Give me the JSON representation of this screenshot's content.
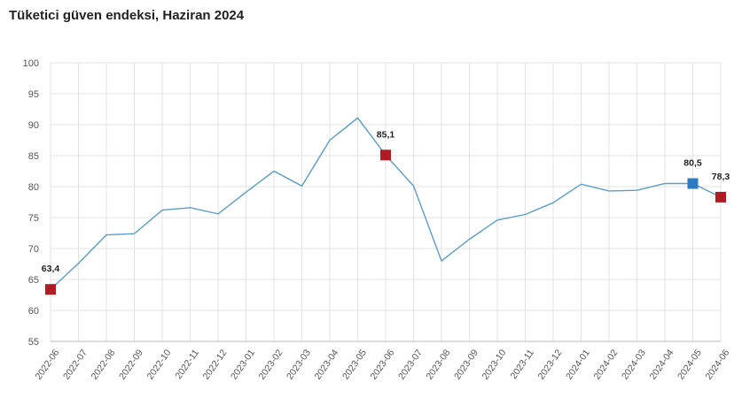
{
  "chart_data": {
    "type": "line",
    "title": "Tüketici güven endeksi, Haziran 2024",
    "xlabel": "",
    "ylabel": "",
    "ylim": [
      55,
      100
    ],
    "yticks": [
      55,
      60,
      65,
      70,
      75,
      80,
      85,
      90,
      95,
      100
    ],
    "grid": true,
    "categories": [
      "2022-06",
      "2022-07",
      "2022-08",
      "2022-09",
      "2022-10",
      "2022-11",
      "2022-12",
      "2023-01",
      "2023-02",
      "2023-03",
      "2023-04",
      "2023-05",
      "2023-06",
      "2023-07",
      "2023-08",
      "2023-09",
      "2023-10",
      "2023-11",
      "2023-12",
      "2024-01",
      "2024-02",
      "2024-03",
      "2024-04",
      "2024-05",
      "2024-06"
    ],
    "series": [
      {
        "name": "Tüketici güven endeksi",
        "color": "#5b9ec9",
        "values": [
          63.4,
          67.6,
          72.2,
          72.4,
          76.2,
          76.6,
          75.6,
          79.1,
          82.5,
          80.1,
          87.5,
          91.1,
          85.1,
          80.1,
          68.0,
          71.5,
          74.6,
          75.5,
          77.4,
          80.4,
          79.3,
          79.4,
          80.5,
          80.5,
          78.3
        ]
      }
    ],
    "annotations": [
      {
        "index": 0,
        "label": "63,4",
        "color": "#b01c24"
      },
      {
        "index": 12,
        "label": "85,1",
        "color": "#b01c24"
      },
      {
        "index": 23,
        "label": "80,5",
        "color": "#2e7bbf"
      },
      {
        "index": 24,
        "label": "78,3",
        "color": "#b01c24"
      }
    ]
  }
}
